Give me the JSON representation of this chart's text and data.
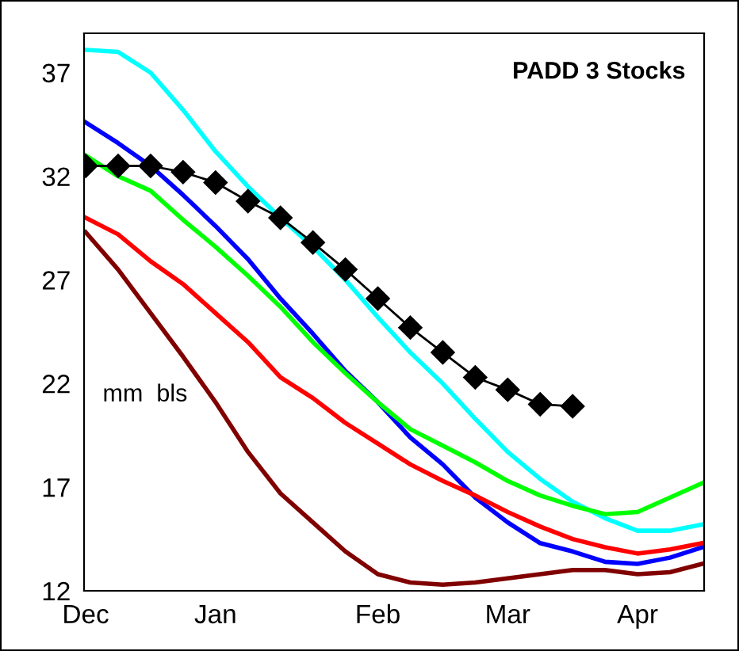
{
  "chart_data": {
    "type": "line",
    "title": "PADD 3 Stocks",
    "annotations": [
      "mm  bls"
    ],
    "categories": [
      "Dec",
      null,
      null,
      null,
      "Jan",
      null,
      null,
      null,
      null,
      "Feb",
      null,
      null,
      null,
      "Mar",
      null,
      null,
      null,
      "Apr",
      null,
      null
    ],
    "ylim": [
      12,
      38.9
    ],
    "yticks": [
      12,
      17,
      22,
      27,
      32,
      37
    ],
    "grid": false,
    "legend": false,
    "series": [
      {
        "color": "#00ffff",
        "values": [
          38.1,
          38.0,
          37.0,
          35.2,
          33.2,
          31.5,
          30.0,
          28.6,
          27.0,
          25.2,
          23.5,
          22.0,
          20.3,
          18.7,
          17.4,
          16.3,
          15.5,
          14.9,
          14.9,
          15.2
        ]
      },
      {
        "color": "#0000ff",
        "values": [
          34.6,
          33.6,
          32.5,
          31.1,
          29.6,
          28.0,
          26.1,
          24.4,
          22.6,
          21.1,
          19.4,
          18.1,
          16.5,
          15.3,
          14.3,
          13.9,
          13.4,
          13.3,
          13.6,
          14.1
        ]
      },
      {
        "color": "#00ff00",
        "values": [
          33.0,
          32.0,
          31.3,
          29.9,
          28.6,
          27.2,
          25.7,
          24.0,
          22.5,
          21.1,
          19.8,
          19.0,
          18.2,
          17.3,
          16.6,
          16.1,
          15.7,
          15.8,
          16.5,
          17.2
        ]
      },
      {
        "color": "#ff0000",
        "values": [
          30.0,
          29.2,
          27.9,
          26.8,
          25.4,
          24.0,
          22.3,
          21.3,
          20.1,
          19.1,
          18.1,
          17.3,
          16.6,
          15.8,
          15.1,
          14.5,
          14.1,
          13.8,
          14.0,
          14.3
        ]
      },
      {
        "color": "#800000",
        "values": [
          29.3,
          27.5,
          25.4,
          23.3,
          21.1,
          18.7,
          16.7,
          15.3,
          13.9,
          12.8,
          12.4,
          12.3,
          12.4,
          12.6,
          12.8,
          13.0,
          13.0,
          12.8,
          12.9,
          13.3
        ]
      },
      {
        "color": "#000000",
        "marker": "diamond",
        "values": [
          32.5,
          32.5,
          32.5,
          32.2,
          31.7,
          30.8,
          30.0,
          28.8,
          27.5,
          26.1,
          24.7,
          23.5,
          22.3,
          21.7,
          21.0,
          20.9,
          null,
          null,
          null,
          null
        ]
      }
    ]
  }
}
